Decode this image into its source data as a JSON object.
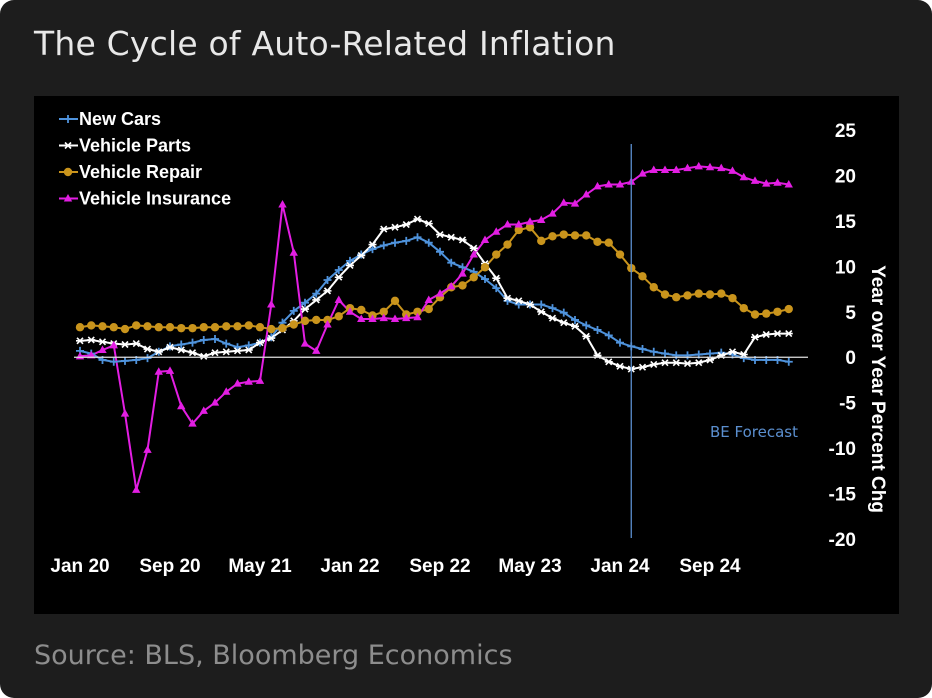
{
  "header": {
    "title": "The Cycle of Auto-Related Inflation"
  },
  "footer": {
    "source": "Source: BLS, Bloomberg Economics"
  },
  "colors": {
    "new_cars": "#4f93dc",
    "vehicle_parts": "#ffffff",
    "vehicle_repair": "#c9941c",
    "vehicle_insurance": "#e31ee3",
    "forecast_line": "#5b8fcf"
  },
  "chart_data": {
    "type": "line",
    "title": "The Cycle of Auto-Related Inflation",
    "ylabel": "Year over Year Percent Chg",
    "ylim": [
      -20,
      25
    ],
    "y_ticks": [
      25,
      20,
      15,
      10,
      5,
      0,
      -5,
      -10,
      -15,
      -20
    ],
    "x_tick_labels": [
      "Jan 20",
      "Sep 20",
      "May 21",
      "Jan 22",
      "Sep 22",
      "May 23",
      "Jan 24",
      "Sep 24"
    ],
    "x_start": "Jan 2020",
    "x_unit": "months since Jan 2020",
    "annotation": {
      "label": "BE Forecast",
      "x": 49
    },
    "series": [
      {
        "name": "New Cars",
        "color": "#4f93dc",
        "marker": "plus",
        "values": [
          0.7,
          0.4,
          -0.3,
          -0.5,
          -0.4,
          -0.3,
          -0.1,
          0.6,
          1.2,
          1.4,
          1.6,
          1.9,
          2.0,
          1.5,
          1.1,
          1.3,
          1.6,
          2.2,
          3.8,
          5.1,
          6.0,
          7.0,
          8.5,
          9.6,
          10.6,
          11.3,
          11.9,
          12.3,
          12.6,
          12.8,
          13.2,
          12.6,
          11.6,
          10.4,
          9.9,
          9.4,
          8.6,
          7.6,
          6.2,
          5.8,
          5.8,
          5.8,
          5.4,
          4.9,
          4.1,
          3.5,
          3.0,
          2.4,
          1.6,
          1.2,
          0.9,
          0.6,
          0.4,
          0.2,
          0.2,
          0.3,
          0.4,
          0.5,
          0.3,
          -0.1,
          -0.3,
          -0.3,
          -0.3,
          -0.5
        ]
      },
      {
        "name": "Vehicle Parts",
        "color": "#ffffff",
        "marker": "star",
        "values": [
          1.8,
          1.9,
          1.7,
          1.5,
          1.4,
          1.5,
          0.9,
          0.6,
          1.1,
          0.8,
          0.5,
          0.1,
          0.5,
          0.6,
          0.7,
          0.8,
          1.6,
          2.1,
          3.0,
          4.0,
          5.3,
          6.3,
          7.3,
          8.8,
          10.1,
          11.2,
          12.4,
          14.1,
          14.3,
          14.6,
          15.2,
          14.7,
          13.5,
          13.2,
          12.9,
          12.0,
          10.3,
          8.7,
          6.5,
          6.2,
          5.8,
          5.0,
          4.3,
          3.8,
          3.4,
          2.3,
          0.2,
          -0.5,
          -1.0,
          -1.3,
          -1.1,
          -0.8,
          -0.6,
          -0.6,
          -0.7,
          -0.6,
          -0.3,
          0.2,
          0.6,
          0.3,
          2.2,
          2.5,
          2.6,
          2.6
        ]
      },
      {
        "name": "Vehicle Repair",
        "color": "#c9941c",
        "marker": "circle",
        "values": [
          3.3,
          3.5,
          3.4,
          3.3,
          3.1,
          3.5,
          3.4,
          3.3,
          3.3,
          3.2,
          3.2,
          3.3,
          3.3,
          3.4,
          3.4,
          3.5,
          3.3,
          3.1,
          3.2,
          3.6,
          4.0,
          4.1,
          4.1,
          4.5,
          5.4,
          5.2,
          4.6,
          5.0,
          6.2,
          4.7,
          5.0,
          5.3,
          6.6,
          7.7,
          7.9,
          8.8,
          9.9,
          11.3,
          12.4,
          14.0,
          14.3,
          12.8,
          13.3,
          13.5,
          13.4,
          13.4,
          12.7,
          12.6,
          11.3,
          9.8,
          8.9,
          7.7,
          6.9,
          6.6,
          6.8,
          7.0,
          6.9,
          7.0,
          6.5,
          5.4,
          4.7,
          4.8,
          5.0,
          5.3
        ]
      },
      {
        "name": "Vehicle Insurance",
        "color": "#e31ee3",
        "marker": "triangle",
        "values": [
          0.1,
          0.2,
          0.8,
          1.3,
          -6.2,
          -14.6,
          -10.2,
          -1.6,
          -1.5,
          -5.4,
          -7.3,
          -5.9,
          -5.0,
          -3.8,
          -2.9,
          -2.7,
          -2.6,
          5.8,
          16.8,
          11.5,
          1.5,
          0.7,
          3.6,
          6.3,
          5.0,
          4.2,
          4.2,
          4.3,
          4.2,
          4.3,
          4.4,
          6.3,
          7.0,
          7.8,
          9.2,
          11.3,
          12.9,
          13.8,
          14.6,
          14.6,
          14.9,
          15.1,
          15.8,
          17.0,
          16.9,
          17.9,
          18.8,
          19.0,
          19.0,
          19.3,
          20.2,
          20.6,
          20.6,
          20.6,
          20.8,
          21.0,
          20.9,
          20.8,
          20.5,
          19.8,
          19.4,
          19.1,
          19.2,
          19.0
        ]
      }
    ]
  }
}
